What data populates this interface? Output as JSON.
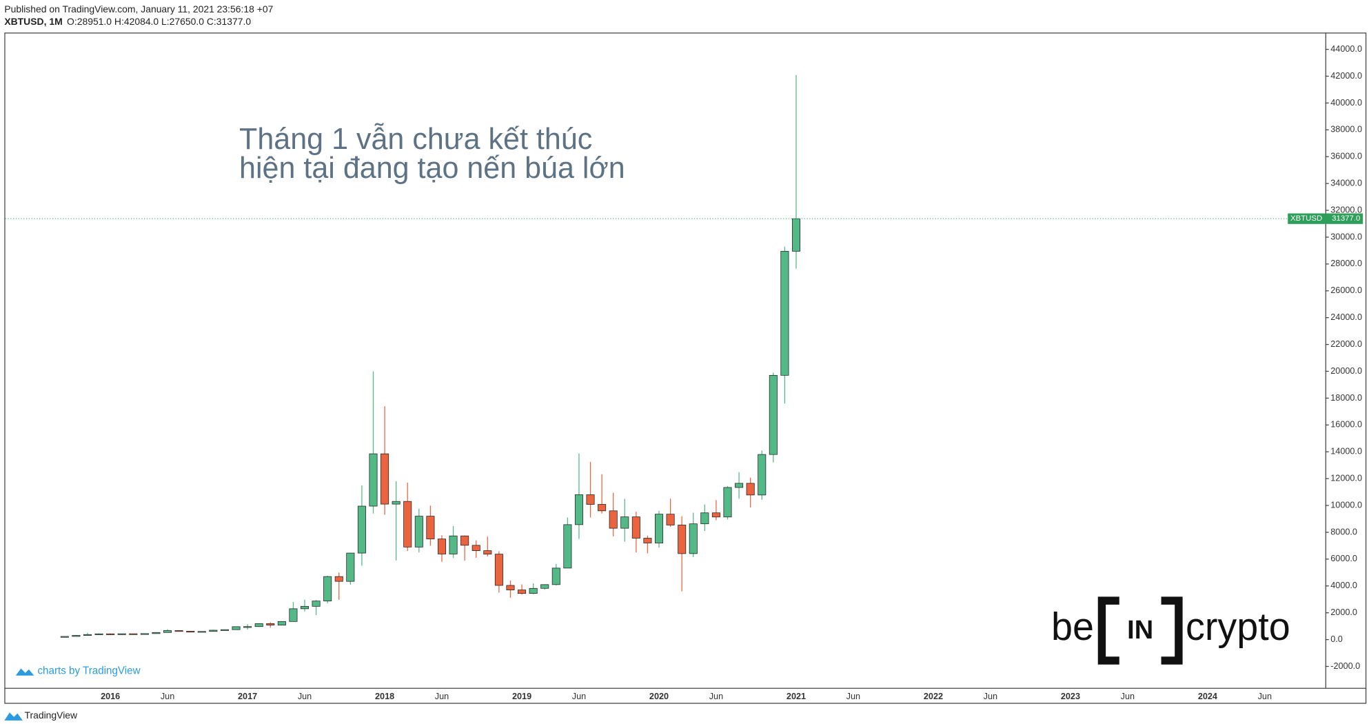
{
  "chart_data": {
    "type": "candlestick",
    "header": {
      "published": "Published on TradingView.com, January 11, 2021 23:56:18 +07",
      "symbol": "XBTUSD, 1M",
      "quote": "O:28951.0 H:42084.0 L:27650.0 C:31377.0"
    },
    "annotation": [
      "Tháng 1 vẫn chưa kết thúc",
      "hiện tại đang tạo nến búa lớn"
    ],
    "watermark": "charts by TradingView",
    "footer": "TradingView",
    "logo": {
      "left": "be",
      "middle": "IN",
      "right": "crypto"
    },
    "up_color": "#53b987",
    "down_color": "#eb6440",
    "grid": false,
    "last_price": 31377,
    "last_price_label": "31377.0",
    "ylim": [
      -3600,
      45250
    ],
    "yticks": [
      {
        "value": -2000,
        "label": "-2000.0"
      },
      {
        "value": 0,
        "label": "0.0"
      },
      {
        "value": 2000,
        "label": "2000.0"
      },
      {
        "value": 4000,
        "label": "4000.0"
      },
      {
        "value": 6000,
        "label": "6000.0"
      },
      {
        "value": 8000,
        "label": "8000.0"
      },
      {
        "value": 10000,
        "label": "10000.0"
      },
      {
        "value": 12000,
        "label": "12000.0"
      },
      {
        "value": 14000,
        "label": "14000.0"
      },
      {
        "value": 16000,
        "label": "16000.0"
      },
      {
        "value": 18000,
        "label": "18000.0"
      },
      {
        "value": 20000,
        "label": "20000.0"
      },
      {
        "value": 22000,
        "label": "22000.0"
      },
      {
        "value": 24000,
        "label": "24000.0"
      },
      {
        "value": 26000,
        "label": "26000.0"
      },
      {
        "value": 28000,
        "label": "28000.0"
      },
      {
        "value": 30000,
        "label": "30000.0"
      },
      {
        "value": 32000,
        "label": "32000.0"
      },
      {
        "value": 34000,
        "label": "34000.0"
      },
      {
        "value": 36000,
        "label": "36000.0"
      },
      {
        "value": 38000,
        "label": "38000.0"
      },
      {
        "value": 40000,
        "label": "40000.0"
      },
      {
        "value": 42000,
        "label": "42000.0"
      },
      {
        "value": 44000,
        "label": "44000.0"
      }
    ],
    "categories": [
      null,
      null,
      null,
      null,
      "2016",
      null,
      null,
      null,
      null,
      "Jun",
      null,
      null,
      null,
      null,
      null,
      null,
      "2017",
      null,
      null,
      null,
      null,
      "Jun",
      null,
      null,
      null,
      null,
      null,
      null,
      "2018",
      null,
      null,
      null,
      null,
      "Jun",
      null,
      null,
      null,
      null,
      null,
      null,
      "2019",
      null,
      null,
      null,
      null,
      "Jun",
      null,
      null,
      null,
      null,
      null,
      null,
      "2020",
      null,
      null,
      null,
      null,
      "Jun",
      null,
      null,
      null,
      null,
      null,
      null,
      "2021",
      null,
      null,
      null,
      null,
      "Jun",
      null,
      null,
      null,
      null,
      null,
      null,
      "2022",
      null,
      null,
      null,
      null,
      "Jun",
      null,
      null,
      null,
      null,
      null,
      null,
      "2023",
      null,
      null,
      null,
      null,
      "Jun",
      null,
      null,
      null,
      null,
      null,
      null,
      "2024",
      null,
      null,
      null,
      null,
      "Jun",
      null,
      null,
      null,
      null
    ],
    "series": [
      {
        "name": "XBTUSD",
        "open": [
          230,
          236,
          314,
          377,
          430,
          368,
          437,
          416,
          448,
          531,
          673,
          624,
          575,
          609,
          700,
          742,
          963,
          970,
          1190,
          1080,
          1350,
          2300,
          2480,
          2875,
          4700,
          4340,
          6450,
          9950,
          13850,
          10100,
          10300,
          6900,
          9200,
          7500,
          6380,
          7730,
          7030,
          6630,
          6370,
          4040,
          3700,
          3440,
          3820,
          4100,
          5330,
          8570,
          10800,
          10080,
          9600,
          8300,
          9150,
          7560,
          7200,
          9350,
          8540,
          6410,
          8630,
          9450,
          9140,
          11340,
          11650,
          10780,
          13800,
          19700,
          28951,
          null,
          null,
          null,
          null,
          null,
          null,
          null,
          null,
          null,
          null,
          null,
          null,
          null,
          null,
          null,
          null,
          null,
          null,
          null,
          null,
          null,
          null,
          null,
          null,
          null,
          null,
          null,
          null,
          null,
          null,
          null,
          null,
          null,
          null,
          null,
          null,
          null,
          null,
          null,
          null,
          null,
          null,
          null,
          null,
          null
        ],
        "high": [
          240,
          330,
          500,
          465,
          460,
          440,
          440,
          470,
          550,
          780,
          700,
          625,
          620,
          740,
          750,
          975,
          1150,
          1210,
          1290,
          1370,
          2800,
          2980,
          2950,
          4760,
          5000,
          6470,
          11500,
          20000,
          17400,
          11800,
          11700,
          9750,
          9990,
          7780,
          8470,
          7760,
          7400,
          7680,
          6590,
          4400,
          4120,
          4200,
          4100,
          5640,
          9100,
          13880,
          13250,
          12330,
          10950,
          10500,
          9530,
          7750,
          9600,
          10500,
          9190,
          9460,
          10080,
          10400,
          11450,
          12480,
          12070,
          14100,
          19900,
          29300,
          42084,
          null,
          null,
          null,
          null,
          null,
          null,
          null,
          null,
          null,
          null,
          null,
          null,
          null,
          null,
          null,
          null,
          null,
          null,
          null,
          null,
          null,
          null,
          null,
          null,
          null,
          null,
          null,
          null,
          null,
          null,
          null,
          null,
          null,
          null,
          null,
          null,
          null,
          null,
          null,
          null,
          null,
          null,
          null,
          null,
          null
        ],
        "low": [
          225,
          235,
          310,
          350,
          360,
          365,
          400,
          415,
          435,
          525,
          605,
          530,
          575,
          605,
          680,
          740,
          750,
          930,
          890,
          1060,
          1350,
          2100,
          1830,
          2700,
          2970,
          4100,
          5500,
          9400,
          9300,
          5900,
          6600,
          6500,
          7000,
          5800,
          6100,
          5880,
          6100,
          6200,
          3500,
          3120,
          3350,
          3380,
          3730,
          4040,
          5330,
          7500,
          9100,
          9400,
          7700,
          7300,
          6500,
          6430,
          6850,
          8400,
          3600,
          6150,
          8100,
          8900,
          8950,
          10500,
          9850,
          10420,
          13200,
          17600,
          27650,
          null,
          null,
          null,
          null,
          null,
          null,
          null,
          null,
          null,
          null,
          null,
          null,
          null,
          null,
          null,
          null,
          null,
          null,
          null,
          null,
          null,
          null,
          null,
          null,
          null,
          null,
          null,
          null,
          null,
          null,
          null,
          null,
          null,
          null,
          null,
          null,
          null,
          null,
          null,
          null,
          null,
          null,
          null,
          null,
          null
        ],
        "close": [
          236,
          314,
          377,
          430,
          368,
          437,
          416,
          448,
          531,
          673,
          624,
          575,
          609,
          700,
          742,
          963,
          970,
          1190,
          1080,
          1350,
          2300,
          2480,
          2875,
          4700,
          4340,
          6450,
          9950,
          13850,
          10100,
          10300,
          6900,
          9200,
          7500,
          6380,
          7730,
          7030,
          6630,
          6370,
          4040,
          3700,
          3440,
          3820,
          4100,
          5330,
          8570,
          10800,
          10080,
          9600,
          8300,
          9150,
          7560,
          7200,
          9350,
          8540,
          6410,
          8630,
          9450,
          9140,
          11340,
          11650,
          10780,
          13800,
          19700,
          28951,
          31377,
          null,
          null,
          null,
          null,
          null,
          null,
          null,
          null,
          null,
          null,
          null,
          null,
          null,
          null,
          null,
          null,
          null,
          null,
          null,
          null,
          null,
          null,
          null,
          null,
          null,
          null,
          null,
          null,
          null,
          null,
          null,
          null,
          null,
          null,
          null,
          null,
          null,
          null,
          null,
          null,
          null,
          null,
          null,
          null,
          null
        ]
      }
    ]
  }
}
